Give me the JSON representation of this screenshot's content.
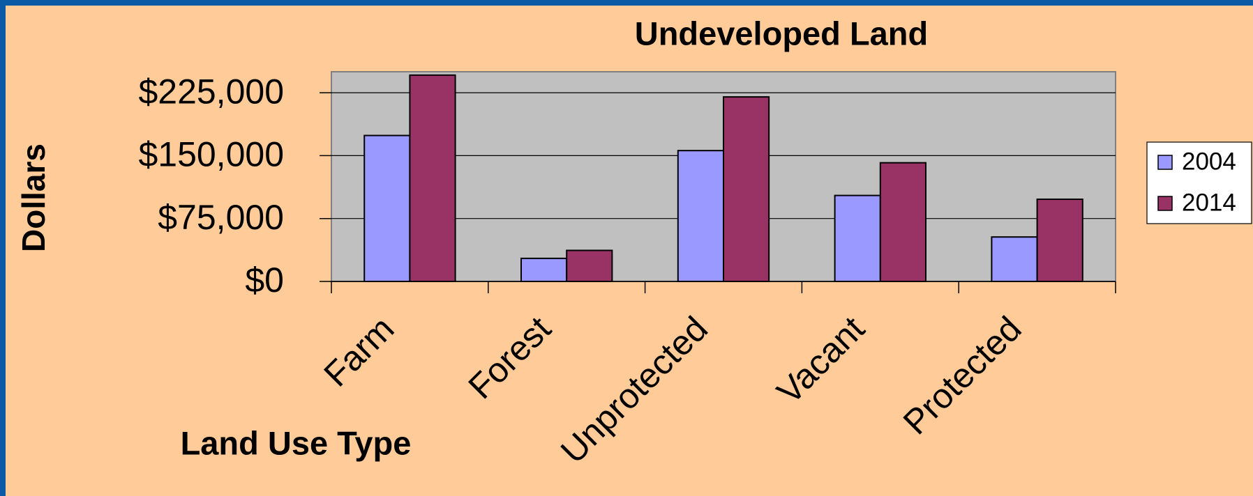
{
  "chart_data": {
    "type": "bar",
    "title": "Undeveloped Land",
    "x_label": "Land Use Type",
    "y_label": "Dollars",
    "categories": [
      "Farm",
      "Forest",
      "Unprotected",
      "Vacant",
      "Protected"
    ],
    "series": [
      {
        "name": "2004",
        "color": "#9999ff",
        "values": [
          174000,
          27500,
          156000,
          102500,
          53000
        ]
      },
      {
        "name": "2014",
        "color": "#993366",
        "values": [
          246000,
          37000,
          220000,
          141500,
          98000
        ]
      }
    ],
    "ylim": [
      0,
      250000
    ],
    "yticks": [
      {
        "value": 0,
        "label": "$0"
      },
      {
        "value": 75000,
        "label": "$75,000"
      },
      {
        "value": 150000,
        "label": "$150,000"
      },
      {
        "value": 225000,
        "label": "$225,000"
      }
    ],
    "grid": true,
    "legend": "right"
  }
}
